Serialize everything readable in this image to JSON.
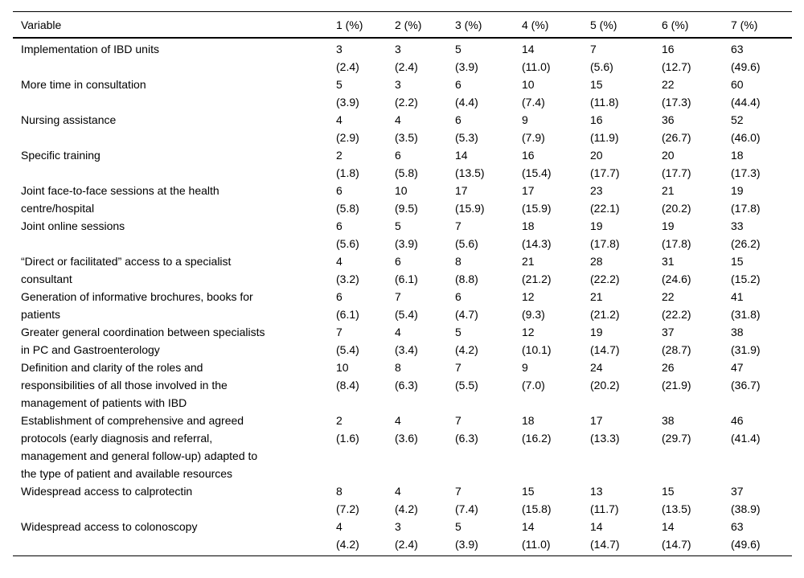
{
  "table": {
    "columns": [
      "Variable",
      "1 (%)",
      "2 (%)",
      "3 (%)",
      "4 (%)",
      "5 (%)",
      "6 (%)",
      "7 (%)"
    ],
    "rows": [
      {
        "label": "Implementation of IBD units",
        "counts": [
          "3",
          "3",
          "5",
          "14",
          "7",
          "16",
          "63"
        ],
        "pcts": [
          "(2.4)",
          "(2.4)",
          "(3.9)",
          "(11.0)",
          "(5.6)",
          "(12.7)",
          "(49.6)"
        ]
      },
      {
        "label": "More time in consultation",
        "counts": [
          "5",
          "3",
          "6",
          "10",
          "15",
          "22",
          "60"
        ],
        "pcts": [
          "(3.9)",
          "(2.2)",
          "(4.4)",
          "(7.4)",
          "(11.8)",
          "(17.3)",
          "(44.4)"
        ]
      },
      {
        "label": "Nursing assistance",
        "counts": [
          "4",
          "4",
          "6",
          "9",
          "16",
          "36",
          "52"
        ],
        "pcts": [
          "(2.9)",
          "(3.5)",
          "(5.3)",
          "(7.9)",
          "(11.9)",
          "(26.7)",
          "(46.0)"
        ]
      },
      {
        "label": "Specific training",
        "counts": [
          "2",
          "6",
          "14",
          "16",
          "20",
          "20",
          "18"
        ],
        "pcts": [
          "(1.8)",
          "(5.8)",
          "(13.5)",
          "(15.4)",
          "(17.7)",
          "(17.7)",
          "(17.3)"
        ]
      },
      {
        "label": "Joint face-to-face sessions at the health\ncentre/hospital",
        "counts": [
          "6",
          "10",
          "17",
          "17",
          "23",
          "21",
          "19"
        ],
        "pcts": [
          "(5.8)",
          "(9.5)",
          "(15.9)",
          "(15.9)",
          "(22.1)",
          "(20.2)",
          "(17.8)"
        ]
      },
      {
        "label": "Joint online sessions",
        "counts": [
          "6",
          "5",
          "7",
          "18",
          "19",
          "19",
          "33"
        ],
        "pcts": [
          "(5.6)",
          "(3.9)",
          "(5.6)",
          "(14.3)",
          "(17.8)",
          "(17.8)",
          "(26.2)"
        ]
      },
      {
        "label": "“Direct or facilitated” access to a specialist\nconsultant",
        "counts": [
          "4",
          "6",
          "8",
          "21",
          "28",
          "31",
          "15"
        ],
        "pcts": [
          "(3.2)",
          "(6.1)",
          "(8.8)",
          "(21.2)",
          "(22.2)",
          "(24.6)",
          "(15.2)"
        ]
      },
      {
        "label": "Generation of informative brochures, books for\npatients",
        "counts": [
          "6",
          "7",
          "6",
          "12",
          "21",
          "22",
          "41"
        ],
        "pcts": [
          "(6.1)",
          "(5.4)",
          "(4.7)",
          "(9.3)",
          "(21.2)",
          "(22.2)",
          "(31.8)"
        ]
      },
      {
        "label": "Greater general coordination between specialists\nin PC and Gastroenterology",
        "counts": [
          "7",
          "4",
          "5",
          "12",
          "19",
          "37",
          "38"
        ],
        "pcts": [
          "(5.4)",
          "(3.4)",
          "(4.2)",
          "(10.1)",
          "(14.7)",
          "(28.7)",
          "(31.9)"
        ]
      },
      {
        "label": "Definition and clarity of the roles and\nresponsibilities of all those involved in the\nmanagement of patients with IBD",
        "counts": [
          "10",
          "8",
          "7",
          "9",
          "24",
          "26",
          "47"
        ],
        "pcts": [
          "(8.4)",
          "(6.3)",
          "(5.5)",
          "(7.0)",
          "(20.2)",
          "(21.9)",
          "(36.7)"
        ]
      },
      {
        "label": "Establishment of comprehensive and agreed\nprotocols (early diagnosis and referral,\nmanagement and general follow-up) adapted to\nthe type of patient and available resources",
        "counts": [
          "2",
          "4",
          "7",
          "18",
          "17",
          "38",
          "46"
        ],
        "pcts": [
          "(1.6)",
          "(3.6)",
          "(6.3)",
          "(16.2)",
          "(13.3)",
          "(29.7)",
          "(41.4)"
        ]
      },
      {
        "label": "Widespread access to calprotectin",
        "counts": [
          "8",
          "4",
          "7",
          "15",
          "13",
          "15",
          "37"
        ],
        "pcts": [
          "(7.2)",
          "(4.2)",
          "(7.4)",
          "(15.8)",
          "(11.7)",
          "(13.5)",
          "(38.9)"
        ]
      },
      {
        "label": "Widespread access to colonoscopy",
        "counts": [
          "4",
          "3",
          "5",
          "14",
          "14",
          "14",
          "63"
        ],
        "pcts": [
          "(4.2)",
          "(2.4)",
          "(3.9)",
          "(11.0)",
          "(14.7)",
          "(14.7)",
          "(49.6)"
        ]
      }
    ]
  }
}
